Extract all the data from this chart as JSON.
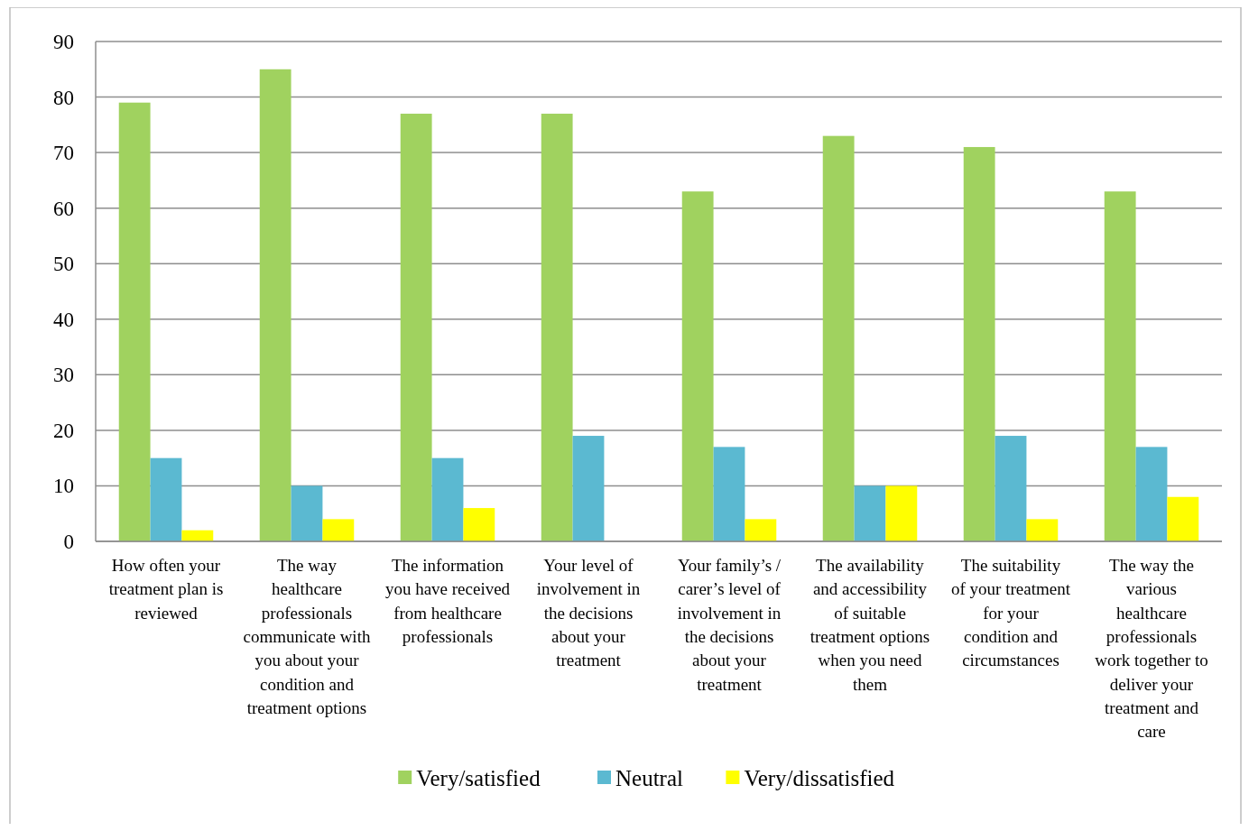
{
  "chart_data": {
    "type": "bar",
    "categories": [
      "How often your treatment plan is reviewed",
      "The way healthcare professionals communicate with you about your condition and treatment options",
      "The information you have received from healthcare professionals",
      "Your level of involvement in the decisions about your treatment",
      "Your family’s / carer’s level of involvement in the decisions about your treatment",
      "The availability and accessibility of suitable treatment options when you need them",
      "The suitability of your treatment for your condition and circumstances",
      "The way the various healthcare professionals work together to deliver your treatment and care"
    ],
    "series": [
      {
        "name": "Very/satisfied",
        "color": "#a0d25f",
        "values": [
          79,
          85,
          77,
          77,
          63,
          73,
          71,
          63
        ]
      },
      {
        "name": "Neutral",
        "color": "#5bb9d1",
        "values": [
          15,
          10,
          15,
          19,
          17,
          10,
          19,
          17
        ]
      },
      {
        "name": "Very/dissatisfied",
        "color": "#ffff00",
        "values": [
          2,
          4,
          6,
          0,
          4,
          10,
          4,
          8
        ]
      }
    ],
    "ylim": [
      0,
      90
    ],
    "yticks": [
      0,
      10,
      20,
      30,
      40,
      50,
      60,
      70,
      80,
      90
    ],
    "grid": "y",
    "legend": "bottom"
  }
}
